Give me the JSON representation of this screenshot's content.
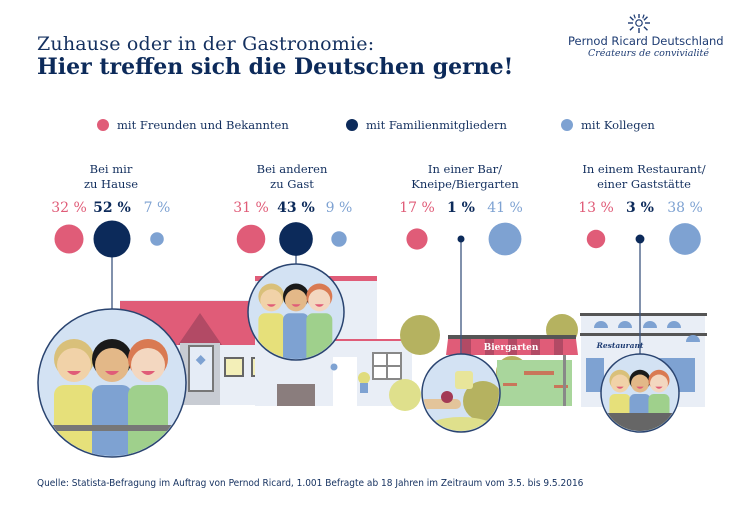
{
  "header": {
    "subtitle": "Zuhause oder in der Gastronomie:",
    "title": "Hier treffen sich die Deutschen gerne!"
  },
  "logo": {
    "name": "Pernod Ricard Deutschland",
    "tagline": "Créateurs de convivialité",
    "icon": "sun-rays-icon"
  },
  "colors": {
    "friends": "#e05c78",
    "family": "#0c2a5a",
    "colleagues": "#7ea2d2"
  },
  "legend": [
    {
      "key": "friends",
      "label": "mit Freunden und Bekannten"
    },
    {
      "key": "family",
      "label": "mit Familienmitgliedern"
    },
    {
      "key": "colleagues",
      "label": "mit Kollegen"
    }
  ],
  "chart_data": {
    "type": "bubble",
    "title": "Hier treffen sich die Deutschen gerne!",
    "subtitle": "Zuhause oder in der Gastronomie:",
    "unit": "%",
    "categories": [
      "Bei mir zu Hause",
      "Bei anderen zu Gast",
      "In einer Bar/ Kneipe/Biergarten",
      "In einem Restaurant/ einer Gaststätte"
    ],
    "category_lines": [
      [
        "Bei mir",
        "zu Hause"
      ],
      [
        "Bei anderen",
        "zu Gast"
      ],
      [
        "In einer Bar/",
        "Kneipe/Biergarten"
      ],
      [
        "In einem Restaurant/",
        "einer Gaststätte"
      ]
    ],
    "series": [
      {
        "name": "mit Freunden und Bekannten",
        "key": "friends",
        "values": [
          32,
          31,
          17,
          13
        ]
      },
      {
        "name": "mit Familienmitgliedern",
        "key": "family",
        "values": [
          52,
          43,
          1,
          3
        ]
      },
      {
        "name": "mit Kollegen",
        "key": "colleagues",
        "values": [
          7,
          9,
          41,
          38
        ]
      }
    ],
    "value_labels": [
      [
        "32 %",
        "52 %",
        "7 %"
      ],
      [
        "31 %",
        "43 %",
        "9 %"
      ],
      [
        "17 %",
        "1 %",
        "41 %"
      ],
      [
        "13 %",
        "3 %",
        "38 %"
      ]
    ],
    "legend_position": "top",
    "illustrations": [
      "friends-at-home",
      "guests-on-balcony",
      "beer-toast-biergarten",
      "friends-at-restaurant"
    ]
  },
  "scene": {
    "biergarten_sign": "Biergarten",
    "restaurant_sign": "Restaurant"
  },
  "source": "Quelle: Statista-Befragung im Auftrag von Pernod Ricard, 1.001 Befragte ab 18 Jahren im Zeitraum vom 3.5. bis 9.5.2016"
}
